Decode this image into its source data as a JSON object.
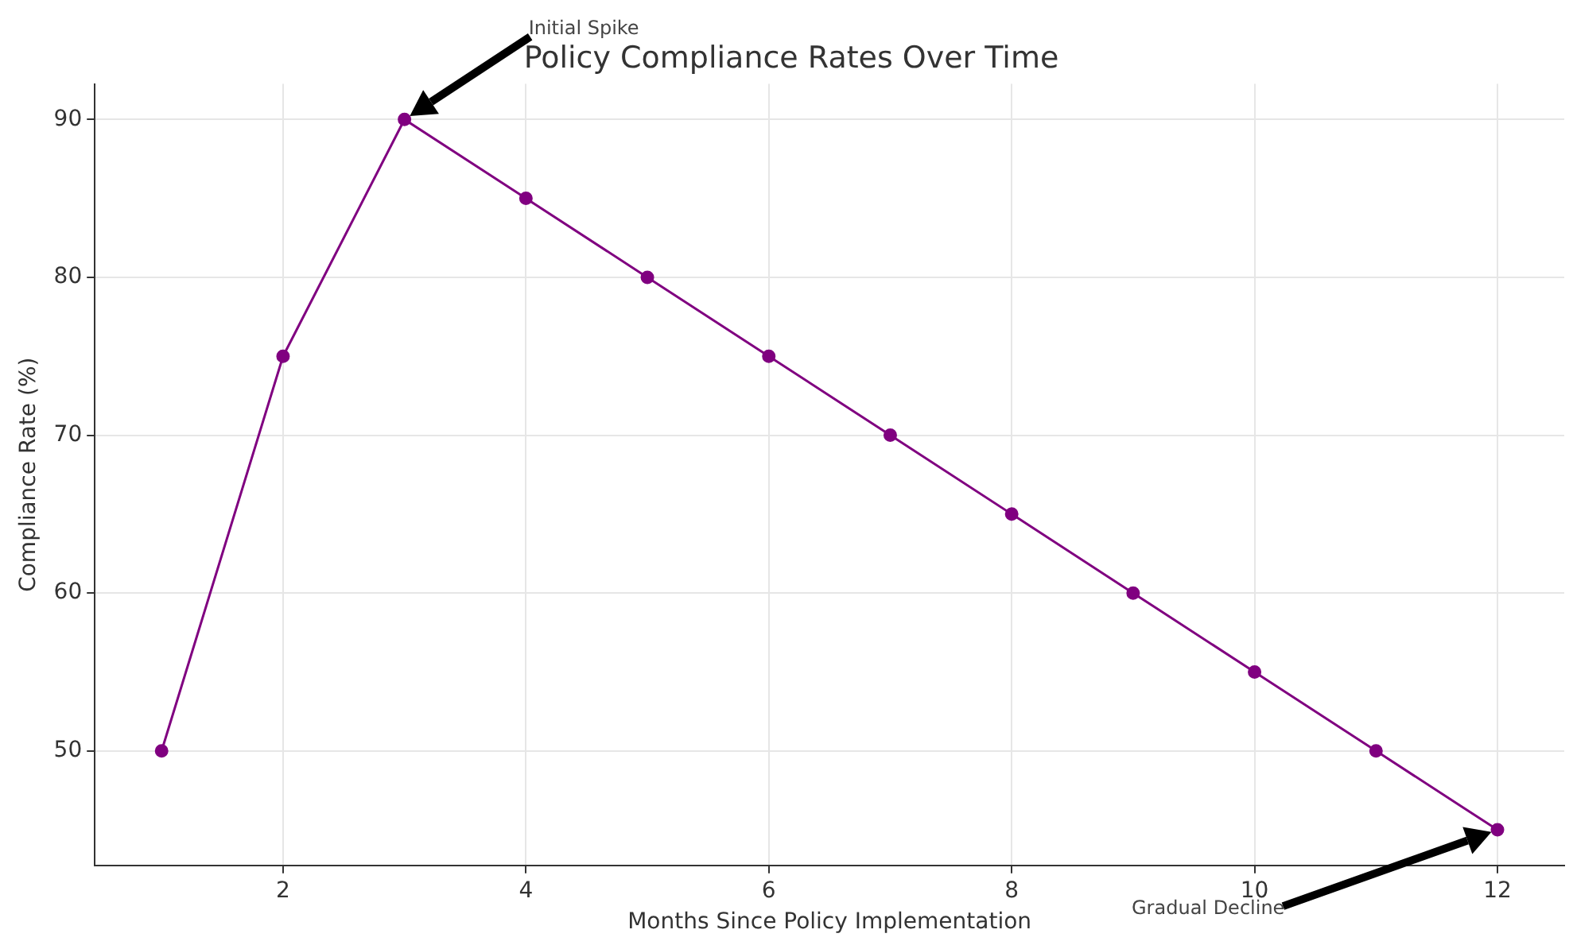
{
  "chart_data": {
    "type": "line",
    "title": "Policy Compliance Rates Over Time",
    "xlabel": "Months Since Policy Implementation",
    "ylabel": "Compliance Rate (%)",
    "x": [
      1,
      2,
      3,
      4,
      5,
      6,
      7,
      8,
      9,
      10,
      11,
      12
    ],
    "series": [
      {
        "color": "#800080",
        "values": [
          50,
          75,
          90,
          85,
          80,
          75,
          70,
          65,
          60,
          55,
          50,
          45
        ]
      }
    ],
    "xlim": [
      0.45,
      12.55
    ],
    "xticks": [
      2,
      4,
      6,
      8,
      10,
      12
    ],
    "ylim": [
      42.75,
      92.25
    ],
    "yticks": [
      50,
      60,
      70,
      80,
      90
    ],
    "grid": true,
    "legend": false,
    "marker": "circle",
    "line_style": "solid",
    "annotations": [
      "Initial Spike",
      "Gradual Decline"
    ]
  }
}
